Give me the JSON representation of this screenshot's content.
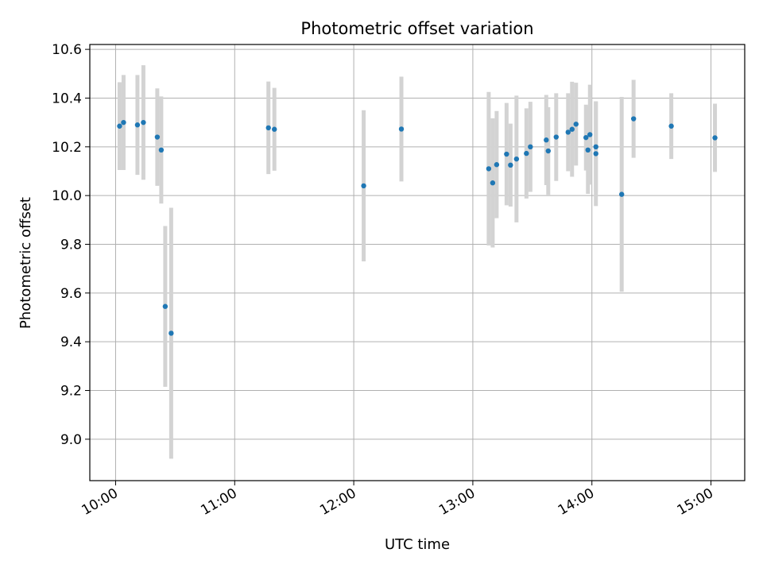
{
  "chart_data": {
    "type": "scatter",
    "title": "Photometric offset variation",
    "xlabel": "UTC time",
    "ylabel": "Photometric offset",
    "x_axis": {
      "kind": "time",
      "range": [
        "09:47",
        "15:17"
      ],
      "ticks": [
        "10:00",
        "11:00",
        "12:00",
        "13:00",
        "14:00",
        "15:00"
      ]
    },
    "ylim": [
      8.83,
      10.62
    ],
    "y_ticks": [
      "9.0",
      "9.2",
      "9.4",
      "9.6",
      "9.8",
      "10.0",
      "10.2",
      "10.4",
      "10.6"
    ],
    "grid": true,
    "colors": {
      "point": "#1f77b4",
      "errorbar": "#d3d3d3",
      "grid": "#b0b0b0"
    },
    "series": [
      {
        "points": [
          {
            "x": "10:02",
            "y": 10.285,
            "err": 0.18
          },
          {
            "x": "10:04",
            "y": 10.3,
            "err": 0.195
          },
          {
            "x": "10:11",
            "y": 10.29,
            "err": 0.205
          },
          {
            "x": "10:14",
            "y": 10.3,
            "err": 0.235
          },
          {
            "x": "10:21",
            "y": 10.24,
            "err": 0.2
          },
          {
            "x": "10:23",
            "y": 10.187,
            "err": 0.22
          },
          {
            "x": "10:25",
            "y": 9.545,
            "err": 0.33
          },
          {
            "x": "10:28",
            "y": 9.435,
            "err": 0.515
          },
          {
            "x": "11:17",
            "y": 10.278,
            "err": 0.19
          },
          {
            "x": "11:20",
            "y": 10.272,
            "err": 0.17
          },
          {
            "x": "12:05",
            "y": 10.04,
            "err": 0.31
          },
          {
            "x": "12:24",
            "y": 10.273,
            "err": 0.215
          },
          {
            "x": "13:08",
            "y": 10.11,
            "err": 0.315
          },
          {
            "x": "13:10",
            "y": 10.052,
            "err": 0.265
          },
          {
            "x": "13:12",
            "y": 10.127,
            "err": 0.22
          },
          {
            "x": "13:17",
            "y": 10.17,
            "err": 0.21
          },
          {
            "x": "13:19",
            "y": 10.125,
            "err": 0.17
          },
          {
            "x": "13:22",
            "y": 10.15,
            "err": 0.26
          },
          {
            "x": "13:27",
            "y": 10.173,
            "err": 0.185
          },
          {
            "x": "13:29",
            "y": 10.2,
            "err": 0.185
          },
          {
            "x": "13:37",
            "y": 10.228,
            "err": 0.185
          },
          {
            "x": "13:38",
            "y": 10.183,
            "err": 0.18
          },
          {
            "x": "13:42",
            "y": 10.24,
            "err": 0.18
          },
          {
            "x": "13:48",
            "y": 10.26,
            "err": 0.16
          },
          {
            "x": "13:50",
            "y": 10.272,
            "err": 0.195
          },
          {
            "x": "13:52",
            "y": 10.293,
            "err": 0.17
          },
          {
            "x": "13:57",
            "y": 10.238,
            "err": 0.135
          },
          {
            "x": "13:58",
            "y": 10.187,
            "err": 0.18
          },
          {
            "x": "13:59",
            "y": 10.25,
            "err": 0.205
          },
          {
            "x": "14:02",
            "y": 10.172,
            "err": 0.215
          },
          {
            "x": "14:02",
            "y": 10.2,
            "err": 0.185
          },
          {
            "x": "14:15",
            "y": 10.005,
            "err": 0.4
          },
          {
            "x": "14:21",
            "y": 10.315,
            "err": 0.16
          },
          {
            "x": "14:40",
            "y": 10.285,
            "err": 0.135
          },
          {
            "x": "15:02",
            "y": 10.237,
            "err": 0.14
          }
        ]
      }
    ]
  }
}
